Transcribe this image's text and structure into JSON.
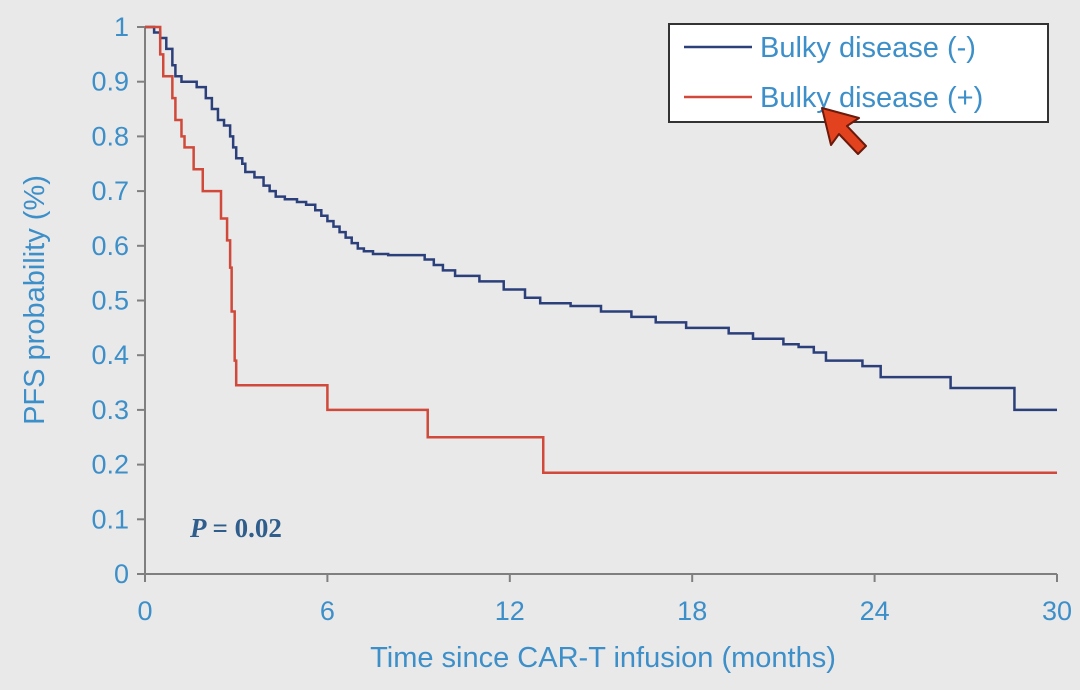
{
  "chart_data": {
    "type": "line",
    "subtype": "kaplan-meier-step",
    "title": "",
    "xlabel": "Time since CAR-T infusion (months)",
    "ylabel": "PFS probability (%)",
    "xlim": [
      0,
      30
    ],
    "ylim": [
      0,
      1
    ],
    "x_ticks": [
      "0",
      "6",
      "12",
      "18",
      "24",
      "30"
    ],
    "y_ticks": [
      "0",
      "0.1",
      "0.2",
      "0.3",
      "0.4",
      "0.5",
      "0.6",
      "0.7",
      "0.8",
      "0.9",
      "1"
    ],
    "grid": false,
    "legend_position": "top-right",
    "annotation": {
      "label": "P",
      "text": "= 0.02"
    },
    "series": [
      {
        "name": "Bulky disease (-)",
        "color": "#2b3f7a",
        "x": [
          0,
          0.3,
          0.5,
          0.7,
          0.9,
          1.0,
          1.2,
          1.7,
          2.0,
          2.2,
          2.4,
          2.6,
          2.8,
          2.9,
          3.0,
          3.2,
          3.3,
          3.6,
          3.9,
          4.1,
          4.3,
          4.6,
          5.0,
          5.3,
          5.6,
          5.8,
          6.0,
          6.2,
          6.4,
          6.6,
          6.8,
          7.0,
          7.2,
          7.5,
          8.0,
          9.2,
          9.5,
          9.8,
          10.2,
          11.0,
          11.8,
          12.5,
          13.0,
          14.0,
          15.0,
          16.0,
          16.8,
          17.8,
          19.2,
          20.0,
          21.0,
          21.5,
          22.0,
          22.4,
          23.6,
          24.2,
          26.5,
          28.6,
          30
        ],
        "y": [
          1.0,
          0.99,
          0.98,
          0.96,
          0.93,
          0.91,
          0.9,
          0.89,
          0.87,
          0.85,
          0.83,
          0.82,
          0.8,
          0.78,
          0.76,
          0.75,
          0.735,
          0.725,
          0.71,
          0.7,
          0.69,
          0.685,
          0.68,
          0.675,
          0.665,
          0.655,
          0.645,
          0.635,
          0.625,
          0.615,
          0.605,
          0.595,
          0.59,
          0.585,
          0.583,
          0.575,
          0.565,
          0.555,
          0.545,
          0.535,
          0.52,
          0.505,
          0.495,
          0.49,
          0.48,
          0.47,
          0.46,
          0.45,
          0.44,
          0.43,
          0.42,
          0.415,
          0.405,
          0.39,
          0.38,
          0.36,
          0.34,
          0.3,
          0.3
        ]
      },
      {
        "name": "Bulky disease (+)",
        "color": "#d0493a",
        "x": [
          0,
          0.5,
          0.6,
          0.9,
          1.0,
          1.2,
          1.3,
          1.6,
          1.9,
          2.5,
          2.7,
          2.8,
          2.85,
          2.95,
          3.0,
          6.0,
          9.3,
          13.1,
          30
        ],
        "y": [
          1.0,
          0.95,
          0.91,
          0.87,
          0.83,
          0.8,
          0.78,
          0.74,
          0.7,
          0.65,
          0.61,
          0.56,
          0.48,
          0.39,
          0.345,
          0.3,
          0.25,
          0.185,
          0.185
        ]
      }
    ]
  }
}
